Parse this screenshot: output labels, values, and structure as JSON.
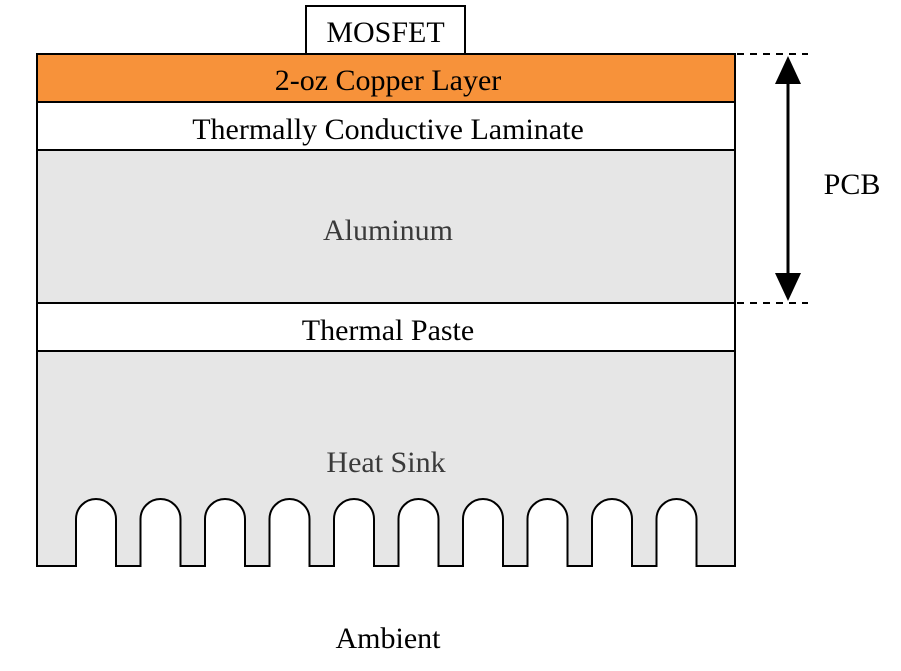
{
  "diagram": {
    "component_label": "MOSFET",
    "layers": {
      "copper": "2-oz Copper Layer",
      "laminate": "Thermally Conductive Laminate",
      "aluminum": "Aluminum",
      "paste": "Thermal Paste",
      "heatsink": "Heat Sink"
    },
    "pcb_label": "PCB",
    "ambient_label": "Ambient",
    "heatsink_fin_count": 10,
    "colors": {
      "copper": "#f7923a",
      "white_layer": "#ffffff",
      "metal": "#e6e6e6",
      "outline": "#000000"
    }
  }
}
